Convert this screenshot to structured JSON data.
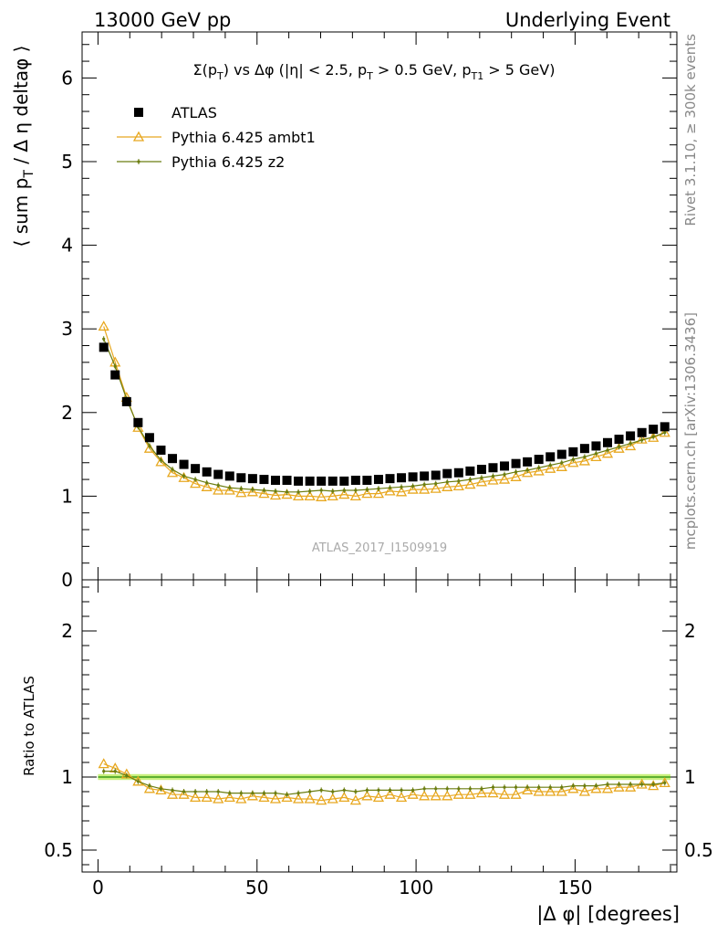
{
  "header": {
    "left": "13000 GeV pp",
    "right": "Underlying Event"
  },
  "plot_title": {
    "t1": "Σ(p",
    "t1sub": "T",
    "t2": ") vs Δφ (|η| < 2.5, p",
    "t2sub": "T",
    "t3": " > 0.5 GeV, p",
    "t3sub": "T1",
    "t4": " > 5 GeV)"
  },
  "side_labels": {
    "rivet": "Rivet 3.1.10, ≥ 300k events",
    "mcplots": "mcplots.cern.ch [arXiv:1306.3436]"
  },
  "watermark": "ATLAS_2017_I1509919",
  "chart_data": [
    {
      "type": "scatter",
      "panel": "main",
      "ylabel": {
        "a": "⟨ sum p",
        "sub": "T",
        "b": " / Δ η deltaφ ⟩"
      },
      "xlim": [
        -5,
        182
      ],
      "ylim": [
        0,
        6.55
      ],
      "yticks": [
        0,
        1,
        2,
        3,
        4,
        5,
        6
      ],
      "legend_position": "top-left",
      "x": [
        1.8,
        5.4,
        9.0,
        12.6,
        16.2,
        19.8,
        23.4,
        27.0,
        30.6,
        34.2,
        37.8,
        41.4,
        45.0,
        48.6,
        52.2,
        55.8,
        59.4,
        63.0,
        66.6,
        70.2,
        73.8,
        77.4,
        81.0,
        84.6,
        88.2,
        91.8,
        95.4,
        99.0,
        102.6,
        106.2,
        109.8,
        113.4,
        117.0,
        120.6,
        124.2,
        127.8,
        131.4,
        135.0,
        138.6,
        142.2,
        145.8,
        149.4,
        153.0,
        156.6,
        160.2,
        163.8,
        167.4,
        171.0,
        174.6,
        178.2
      ],
      "series": [
        {
          "name": "ATLAS",
          "color": "#000000",
          "marker": "square",
          "values": [
            2.78,
            2.45,
            2.13,
            1.88,
            1.7,
            1.55,
            1.45,
            1.38,
            1.33,
            1.29,
            1.26,
            1.24,
            1.22,
            1.21,
            1.2,
            1.19,
            1.19,
            1.18,
            1.18,
            1.18,
            1.18,
            1.18,
            1.19,
            1.19,
            1.2,
            1.21,
            1.22,
            1.23,
            1.24,
            1.25,
            1.27,
            1.28,
            1.3,
            1.32,
            1.34,
            1.36,
            1.39,
            1.41,
            1.44,
            1.47,
            1.5,
            1.53,
            1.57,
            1.6,
            1.64,
            1.68,
            1.72,
            1.76,
            1.8,
            1.83
          ]
        },
        {
          "name": "Pythia 6.425 ambt1",
          "color": "#e8a820",
          "marker": "triangle",
          "values": [
            3.03,
            2.6,
            2.18,
            1.82,
            1.57,
            1.41,
            1.28,
            1.22,
            1.15,
            1.11,
            1.07,
            1.07,
            1.04,
            1.05,
            1.03,
            1.01,
            1.02,
            1.0,
            1.0,
            0.99,
            1.0,
            1.02,
            1.0,
            1.03,
            1.03,
            1.06,
            1.05,
            1.08,
            1.08,
            1.09,
            1.11,
            1.12,
            1.14,
            1.17,
            1.19,
            1.2,
            1.23,
            1.28,
            1.3,
            1.33,
            1.35,
            1.4,
            1.42,
            1.47,
            1.51,
            1.57,
            1.6,
            1.68,
            1.7,
            1.76
          ]
        },
        {
          "name": "Pythia 6.425 z2",
          "color": "#6b7d10",
          "marker": "dot",
          "values": [
            2.88,
            2.55,
            2.16,
            1.83,
            1.6,
            1.43,
            1.32,
            1.24,
            1.2,
            1.16,
            1.13,
            1.1,
            1.09,
            1.08,
            1.07,
            1.06,
            1.05,
            1.05,
            1.06,
            1.07,
            1.06,
            1.07,
            1.07,
            1.08,
            1.09,
            1.1,
            1.11,
            1.12,
            1.14,
            1.15,
            1.17,
            1.18,
            1.2,
            1.22,
            1.24,
            1.26,
            1.29,
            1.31,
            1.34,
            1.37,
            1.4,
            1.44,
            1.47,
            1.51,
            1.55,
            1.59,
            1.63,
            1.67,
            1.71,
            1.76
          ]
        }
      ]
    },
    {
      "type": "line",
      "panel": "ratio",
      "ylabel": "Ratio to ATLAS",
      "xlabel": "|Δ φ| [degrees]",
      "xlim": [
        -5,
        182
      ],
      "ylim": [
        0.35,
        2.35
      ],
      "xticks": [
        0,
        50,
        100,
        150
      ],
      "yticks": [
        0.5,
        1,
        2
      ],
      "reference_band": {
        "value": 1.0,
        "halfwidth": 0.02,
        "band_color": "#c8f07c",
        "line_color": "#3a9a1a"
      },
      "series": [
        {
          "name": "Pythia 6.425 ambt1",
          "color": "#e8a820",
          "marker": "triangle",
          "values": [
            1.09,
            1.06,
            1.02,
            0.97,
            0.92,
            0.91,
            0.88,
            0.88,
            0.86,
            0.86,
            0.85,
            0.86,
            0.85,
            0.87,
            0.86,
            0.85,
            0.86,
            0.85,
            0.85,
            0.84,
            0.85,
            0.86,
            0.84,
            0.87,
            0.86,
            0.88,
            0.86,
            0.88,
            0.87,
            0.87,
            0.87,
            0.88,
            0.88,
            0.89,
            0.89,
            0.88,
            0.88,
            0.91,
            0.9,
            0.9,
            0.9,
            0.92,
            0.9,
            0.92,
            0.92,
            0.93,
            0.93,
            0.95,
            0.94,
            0.96
          ]
        },
        {
          "name": "Pythia 6.425 z2",
          "color": "#6b7d10",
          "marker": "dot",
          "values": [
            1.04,
            1.04,
            1.01,
            0.97,
            0.94,
            0.92,
            0.91,
            0.9,
            0.9,
            0.9,
            0.9,
            0.89,
            0.89,
            0.89,
            0.89,
            0.89,
            0.88,
            0.89,
            0.9,
            0.91,
            0.9,
            0.91,
            0.9,
            0.91,
            0.91,
            0.91,
            0.91,
            0.91,
            0.92,
            0.92,
            0.92,
            0.92,
            0.92,
            0.92,
            0.93,
            0.93,
            0.93,
            0.93,
            0.93,
            0.93,
            0.93,
            0.94,
            0.94,
            0.94,
            0.95,
            0.95,
            0.95,
            0.95,
            0.95,
            0.96
          ]
        }
      ]
    }
  ]
}
